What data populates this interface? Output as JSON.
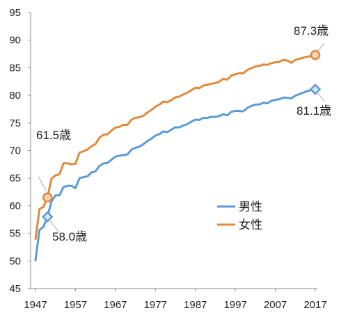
{
  "chart_data": {
    "type": "line",
    "title": "",
    "xlabel": "",
    "ylabel": "",
    "xlim": [
      1947,
      2017
    ],
    "ylim": [
      45,
      95
    ],
    "y_ticks": [
      "50",
      "55",
      "60",
      "65",
      "70",
      "75",
      "80",
      "85",
      "90",
      "95",
      "45"
    ],
    "x_ticks": [
      "1947",
      "1957",
      "1967",
      "1977",
      "1987",
      "1997",
      "2007",
      "2017"
    ],
    "grid": false,
    "legend_position": "lower-right",
    "colors": {
      "male": "#5b9bd5",
      "female": "#e08a3c"
    },
    "series": [
      {
        "name": "男性",
        "color": "#5b9bd5",
        "marker": "diamond",
        "x": [
          1947,
          1948,
          1949,
          1950,
          1951,
          1952,
          1953,
          1954,
          1955,
          1956,
          1957,
          1958,
          1959,
          1960,
          1961,
          1962,
          1963,
          1964,
          1965,
          1966,
          1967,
          1968,
          1969,
          1970,
          1971,
          1972,
          1973,
          1974,
          1975,
          1976,
          1977,
          1978,
          1979,
          1980,
          1981,
          1982,
          1983,
          1984,
          1985,
          1986,
          1987,
          1988,
          1989,
          1990,
          1991,
          1992,
          1993,
          1994,
          1995,
          1996,
          1997,
          1998,
          1999,
          2000,
          2001,
          2002,
          2003,
          2004,
          2005,
          2006,
          2007,
          2008,
          2009,
          2010,
          2011,
          2012,
          2013,
          2014,
          2015,
          2016,
          2017
        ],
        "values": [
          50.1,
          55.6,
          56.2,
          58.0,
          60.8,
          61.9,
          61.9,
          63.4,
          63.6,
          63.6,
          63.2,
          64.98,
          65.21,
          65.32,
          66.03,
          66.23,
          67.21,
          67.67,
          67.74,
          68.35,
          68.91,
          69.05,
          69.18,
          69.31,
          70.17,
          70.5,
          70.7,
          71.16,
          71.73,
          72.15,
          72.69,
          72.97,
          73.46,
          73.35,
          73.79,
          74.22,
          74.2,
          74.54,
          74.78,
          75.23,
          75.61,
          75.54,
          75.91,
          75.92,
          76.11,
          76.09,
          76.25,
          76.57,
          76.38,
          77.01,
          77.19,
          77.16,
          77.1,
          77.72,
          78.07,
          78.32,
          78.36,
          78.64,
          78.56,
          79.0,
          79.19,
          79.29,
          79.59,
          79.55,
          79.44,
          79.94,
          80.21,
          80.5,
          80.75,
          80.98,
          81.1
        ]
      },
      {
        "name": "女性",
        "color": "#e08a3c",
        "marker": "circle",
        "x": [
          1947,
          1948,
          1949,
          1950,
          1951,
          1952,
          1953,
          1954,
          1955,
          1956,
          1957,
          1958,
          1959,
          1960,
          1961,
          1962,
          1963,
          1964,
          1965,
          1966,
          1967,
          1968,
          1969,
          1970,
          1971,
          1972,
          1973,
          1974,
          1975,
          1976,
          1977,
          1978,
          1979,
          1980,
          1981,
          1982,
          1983,
          1984,
          1985,
          1986,
          1987,
          1988,
          1989,
          1990,
          1991,
          1992,
          1993,
          1994,
          1995,
          1996,
          1997,
          1998,
          1999,
          2000,
          2001,
          2002,
          2003,
          2004,
          2005,
          2006,
          2007,
          2008,
          2009,
          2010,
          2011,
          2012,
          2013,
          2014,
          2015,
          2016,
          2017
        ],
        "values": [
          54.0,
          59.4,
          59.8,
          61.5,
          64.9,
          65.5,
          65.7,
          67.7,
          67.7,
          67.5,
          67.6,
          69.61,
          69.88,
          70.19,
          70.79,
          71.16,
          72.34,
          72.87,
          72.92,
          73.61,
          74.15,
          74.3,
          74.67,
          74.66,
          75.58,
          75.94,
          76.02,
          76.31,
          76.89,
          77.35,
          77.95,
          78.33,
          78.89,
          78.76,
          79.13,
          79.66,
          79.78,
          80.18,
          80.48,
          80.93,
          81.39,
          81.3,
          81.77,
          81.9,
          82.11,
          82.22,
          82.51,
          82.98,
          82.85,
          83.59,
          83.82,
          84.01,
          83.99,
          84.6,
          84.93,
          85.23,
          85.33,
          85.59,
          85.52,
          85.81,
          85.99,
          86.05,
          86.44,
          86.3,
          85.9,
          86.41,
          86.61,
          86.83,
          86.99,
          87.14,
          87.3
        ]
      }
    ],
    "annotations": [
      {
        "series": 1,
        "year": 1950,
        "text": "61.5歳",
        "value": 61.5
      },
      {
        "series": 0,
        "year": 1950,
        "text": "58.0歳",
        "value": 58.0
      },
      {
        "series": 1,
        "year": 2017,
        "text": "87.3歳",
        "value": 87.3
      },
      {
        "series": 0,
        "year": 2017,
        "text": "81.1歳",
        "value": 81.1
      }
    ]
  }
}
